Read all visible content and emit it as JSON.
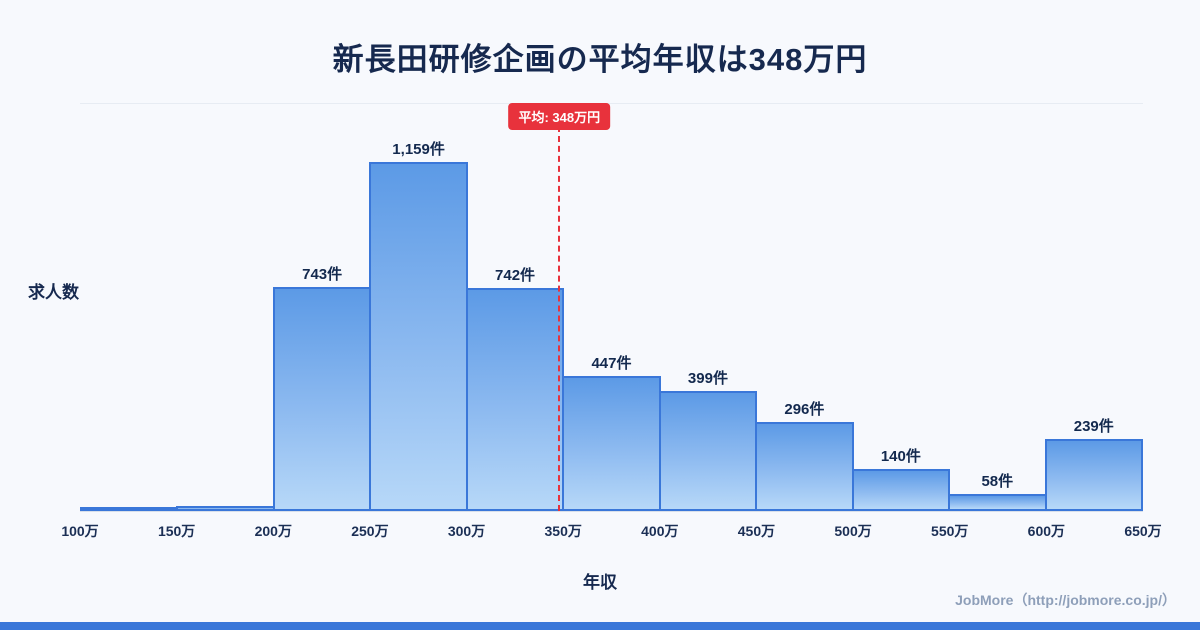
{
  "title": "新長田研修企画の平均年収は348万円",
  "footer": "JobMore（http://jobmore.co.jp/）",
  "chart_data": {
    "type": "bar",
    "title": "新長田研修企画の平均年収は348万円",
    "xlabel": "年収",
    "ylabel": "求人数",
    "bin_edge_labels": [
      "100万",
      "150万",
      "200万",
      "250万",
      "300万",
      "350万",
      "400万",
      "450万",
      "500万",
      "550万",
      "600万",
      "650万"
    ],
    "series": [
      {
        "name": "求人数",
        "values": [
          8,
          18,
          743,
          1159,
          742,
          447,
          399,
          296,
          140,
          58,
          239
        ]
      }
    ],
    "bar_labels": [
      "",
      "",
      "743件",
      "1,159件",
      "742件",
      "447件",
      "399件",
      "296件",
      "140件",
      "58件",
      "239件"
    ],
    "average_line": {
      "value": 348,
      "label": "平均: 348万円",
      "color": "#e8323c"
    },
    "x_range": [
      100,
      650
    ],
    "ylim": [
      0,
      1250
    ],
    "grid": "off",
    "legend": "none",
    "colors": {
      "bar_gradient_top": "#5c9ae6",
      "bar_gradient_bottom": "#b7d8f8",
      "bar_border": "#3a77d9",
      "accent_red": "#e8323c",
      "title_navy": "#16294f",
      "footer_gray": "#8e9fb9",
      "background": "#f7f9fd"
    }
  }
}
